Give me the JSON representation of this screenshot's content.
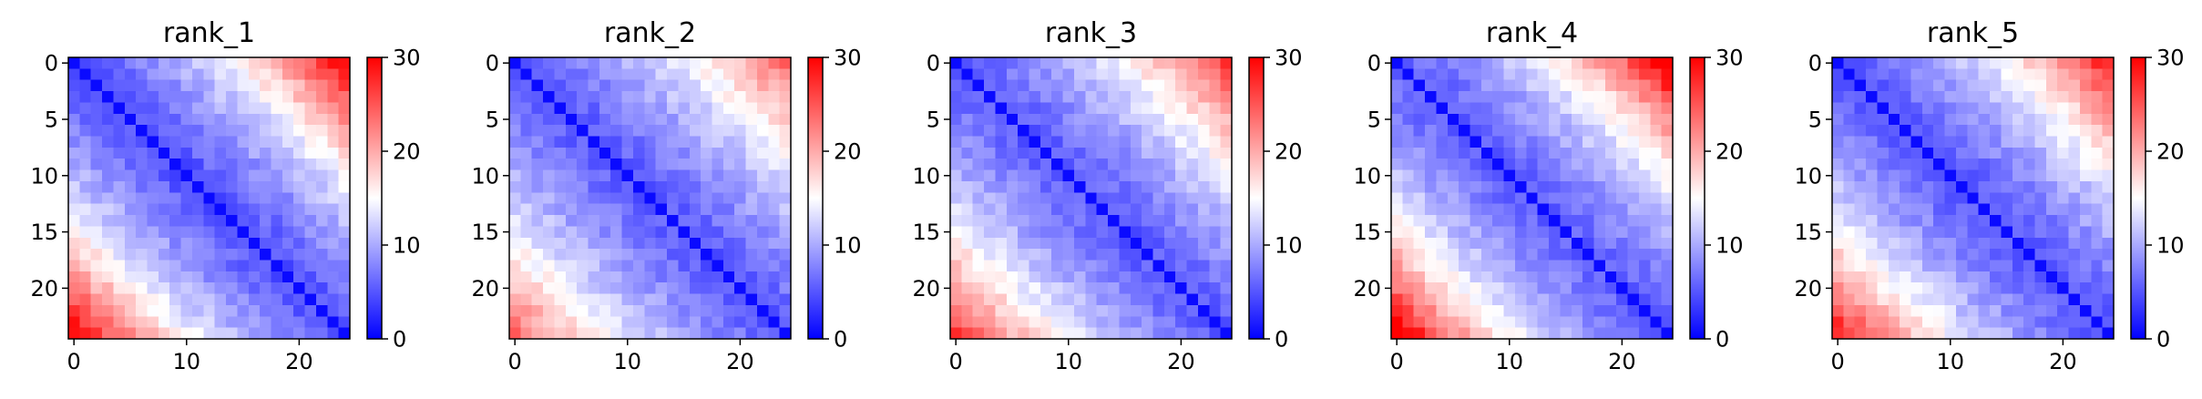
{
  "chart_data": [
    {
      "type": "heatmap",
      "title": "rank_1",
      "size": 25,
      "colormap": "bwr",
      "vmin": 0,
      "vmax": 30,
      "x_ticks": [
        0,
        10,
        20
      ],
      "y_ticks": [
        0,
        5,
        10,
        15,
        20
      ],
      "colorbar_ticks": [
        0,
        10,
        20,
        30
      ],
      "values_description": "symmetric distance matrix; 0 on diagonal, 2-8 near diagonal, ~14-16 mid off-diagonal, 18-26 in far corners"
    },
    {
      "type": "heatmap",
      "title": "rank_2",
      "size": 25,
      "colormap": "bwr",
      "vmin": 0,
      "vmax": 30,
      "x_ticks": [
        0,
        10,
        20
      ],
      "y_ticks": [
        0,
        5,
        10,
        15,
        20
      ],
      "colorbar_ticks": [
        0,
        10,
        20,
        30
      ],
      "values_description": "symmetric distance matrix; 0 on diagonal, ~3-9 near diagonal, ~12-15 mid, ~17-20 far corners"
    },
    {
      "type": "heatmap",
      "title": "rank_3",
      "size": 25,
      "colormap": "bwr",
      "vmin": 0,
      "vmax": 30,
      "x_ticks": [
        0,
        10,
        20
      ],
      "y_ticks": [
        0,
        5,
        10,
        15,
        20
      ],
      "colorbar_ticks": [
        0,
        10,
        20,
        30
      ],
      "values_description": "symmetric distance matrix; 0 on diagonal, ~3-9 near diagonal, ~13-16 mid, ~18-22 far corners"
    },
    {
      "type": "heatmap",
      "title": "rank_4",
      "size": 25,
      "colormap": "bwr",
      "vmin": 0,
      "vmax": 30,
      "x_ticks": [
        0,
        10,
        20
      ],
      "y_ticks": [
        0,
        5,
        10,
        15,
        20
      ],
      "colorbar_ticks": [
        0,
        10,
        20,
        30
      ],
      "values_description": "symmetric distance matrix; 0 on diagonal, ~3-9 near diagonal, ~14-17 mid, ~22-27 far corners"
    },
    {
      "type": "heatmap",
      "title": "rank_5",
      "size": 25,
      "colormap": "bwr",
      "vmin": 0,
      "vmax": 30,
      "x_ticks": [
        0,
        10,
        20
      ],
      "y_ticks": [
        0,
        5,
        10,
        15,
        20
      ],
      "colorbar_ticks": [
        0,
        10,
        20,
        30
      ],
      "values_description": "symmetric distance matrix; 0 on diagonal, ~3-9 near diagonal, ~13-16 mid, ~19-25 far corners"
    }
  ]
}
